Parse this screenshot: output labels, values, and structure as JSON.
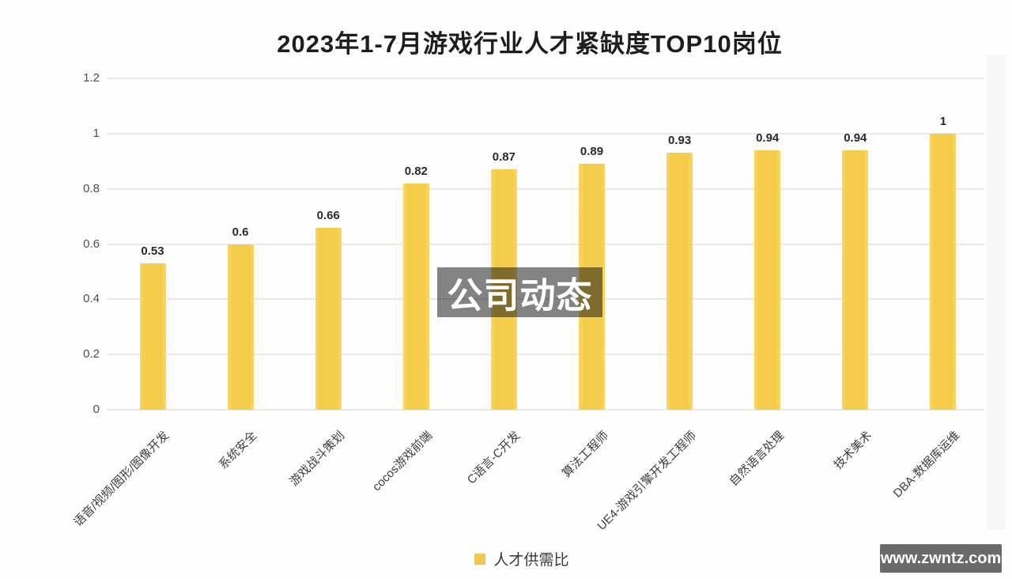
{
  "chart_data": {
    "type": "bar",
    "title": "2023年1-7月游戏行业人才紧缺度TOP10岗位",
    "categories": [
      "语音/视频/图形/图像开发",
      "系统安全",
      "游戏战斗策划",
      "cocos游戏前端",
      "C语言-C开发",
      "算法工程师",
      "UE4-游戏引擎开发工程师",
      "自然语言处理",
      "技术美术",
      "DBA-数据库运维"
    ],
    "values": [
      0.53,
      0.6,
      0.66,
      0.82,
      0.87,
      0.89,
      0.93,
      0.94,
      0.94,
      1
    ],
    "value_labels": [
      "0.53",
      "0.6",
      "0.66",
      "0.82",
      "0.87",
      "0.89",
      "0.93",
      "0.94",
      "0.94",
      "1"
    ],
    "xlabel": "",
    "ylabel": "",
    "ylim": [
      0,
      1.2
    ],
    "ytick_labels": [
      "1.2",
      "1",
      "0.8",
      "0.6",
      "0.4",
      "0.2",
      "0"
    ],
    "grid": true,
    "bar_color": "#f5cc49",
    "legend": {
      "label": "人才供需比",
      "position": "bottom",
      "swatch_color": "#efc94f"
    }
  },
  "watermark": {
    "text": "公司动态"
  },
  "site_badge": {
    "text": "www.zwntz.com",
    "bg_color": "#6a6a6a"
  }
}
